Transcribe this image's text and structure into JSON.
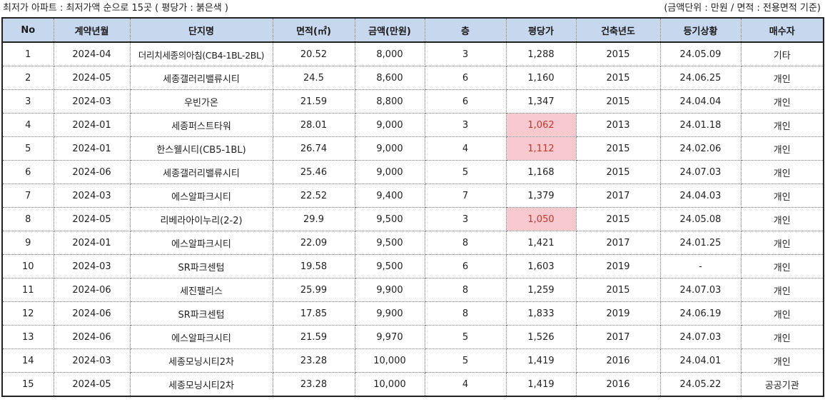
{
  "caption": {
    "left": "최저가 아파트 : 최저가액 순으로 15곳 ( 평당가 : 붉은색 )",
    "right": "(금액단위 : 만원 / 면적 : 전용면적 기준)"
  },
  "columns": [
    "No",
    "계약년월",
    "단지명",
    "면적(㎡)",
    "금액(만원)",
    "층",
    "평당가",
    "건축년도",
    "등기상황",
    "매수자"
  ],
  "highlight_color": "#f8c8cf",
  "highlight_text_color": "#c0392b",
  "header_color": "#c6d7ee",
  "rows": [
    {
      "no": "1",
      "ym": "2024-04",
      "name": "더리치세종의아침(CB4-1BL-2BL)",
      "area": "20.52",
      "price": "8,000",
      "floor": "3",
      "ppp": "1,288",
      "built": "2015",
      "reg": "24.05.09",
      "buyer": "기타",
      "hl": false
    },
    {
      "no": "2",
      "ym": "2024-05",
      "name": "세종갤러리밸류시티",
      "area": "24.5",
      "price": "8,600",
      "floor": "6",
      "ppp": "1,160",
      "built": "2015",
      "reg": "24.06.25",
      "buyer": "개인",
      "hl": false
    },
    {
      "no": "3",
      "ym": "2024-03",
      "name": "우빈가온",
      "area": "21.59",
      "price": "8,800",
      "floor": "6",
      "ppp": "1,347",
      "built": "2015",
      "reg": "24.04.04",
      "buyer": "개인",
      "hl": false
    },
    {
      "no": "4",
      "ym": "2024-01",
      "name": "세종퍼스트타워",
      "area": "28.01",
      "price": "9,000",
      "floor": "3",
      "ppp": "1,062",
      "built": "2013",
      "reg": "24.01.18",
      "buyer": "개인",
      "hl": true
    },
    {
      "no": "5",
      "ym": "2024-01",
      "name": "한스웰시티(CB5-1BL)",
      "area": "26.74",
      "price": "9,000",
      "floor": "4",
      "ppp": "1,112",
      "built": "2015",
      "reg": "24.02.06",
      "buyer": "개인",
      "hl": true
    },
    {
      "no": "6",
      "ym": "2024-06",
      "name": "세종갤러리밸류시티",
      "area": "25.46",
      "price": "9,000",
      "floor": "5",
      "ppp": "1,168",
      "built": "2015",
      "reg": "24.07.03",
      "buyer": "개인",
      "hl": false
    },
    {
      "no": "7",
      "ym": "2024-03",
      "name": "에스알파크시티",
      "area": "22.52",
      "price": "9,400",
      "floor": "7",
      "ppp": "1,379",
      "built": "2017",
      "reg": "24.04.03",
      "buyer": "개인",
      "hl": false
    },
    {
      "no": "8",
      "ym": "2024-05",
      "name": "리베라아이누리(2-2)",
      "area": "29.9",
      "price": "9,500",
      "floor": "3",
      "ppp": "1,050",
      "built": "2015",
      "reg": "24.05.08",
      "buyer": "개인",
      "hl": true
    },
    {
      "no": "9",
      "ym": "2024-01",
      "name": "에스알파크시티",
      "area": "22.09",
      "price": "9,500",
      "floor": "8",
      "ppp": "1,421",
      "built": "2017",
      "reg": "24.01.25",
      "buyer": "개인",
      "hl": false
    },
    {
      "no": "10",
      "ym": "2024-03",
      "name": "SR파크센텀",
      "area": "19.58",
      "price": "9,500",
      "floor": "6",
      "ppp": "1,603",
      "built": "2019",
      "reg": "-",
      "buyer": "개인",
      "hl": false
    },
    {
      "no": "11",
      "ym": "2024-06",
      "name": "세진팰리스",
      "area": "25.99",
      "price": "9,900",
      "floor": "8",
      "ppp": "1,259",
      "built": "2015",
      "reg": "24.07.03",
      "buyer": "개인",
      "hl": false
    },
    {
      "no": "12",
      "ym": "2024-06",
      "name": "SR파크센텀",
      "area": "17.85",
      "price": "9,900",
      "floor": "8",
      "ppp": "1,833",
      "built": "2019",
      "reg": "24.06.19",
      "buyer": "개인",
      "hl": false
    },
    {
      "no": "13",
      "ym": "2024-06",
      "name": "에스알파크시티",
      "area": "21.59",
      "price": "9,970",
      "floor": "5",
      "ppp": "1,526",
      "built": "2017",
      "reg": "24.07.03",
      "buyer": "개인",
      "hl": false
    },
    {
      "no": "14",
      "ym": "2024-03",
      "name": "세종모닝시티2차",
      "area": "23.28",
      "price": "10,000",
      "floor": "5",
      "ppp": "1,419",
      "built": "2016",
      "reg": "24.04.01",
      "buyer": "개인",
      "hl": false
    },
    {
      "no": "15",
      "ym": "2024-05",
      "name": "세종모닝시티2차",
      "area": "23.28",
      "price": "10,000",
      "floor": "4",
      "ppp": "1,419",
      "built": "2016",
      "reg": "24.05.22",
      "buyer": "공공기관",
      "hl": false
    }
  ]
}
